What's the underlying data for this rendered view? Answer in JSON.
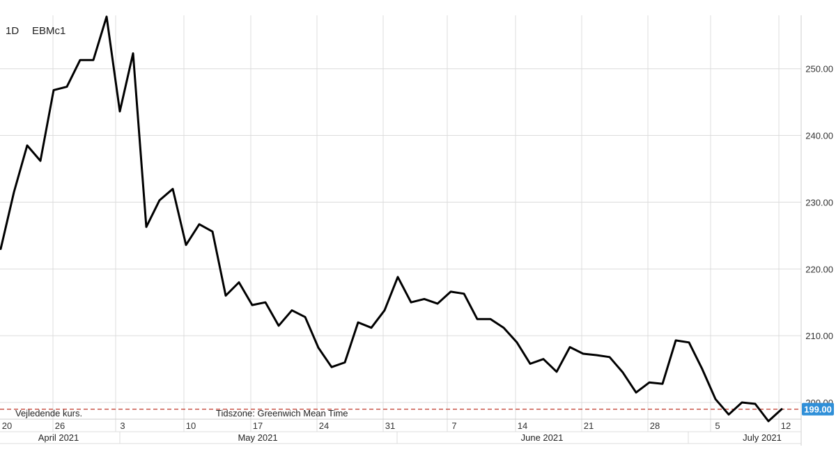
{
  "header": {
    "interval": "1D",
    "symbol": "EBMc1"
  },
  "notes": {
    "indicative": "Vejledende kurs.",
    "timezone": "Tidszone: Greenwich Mean Time"
  },
  "colors": {
    "line": "#000000",
    "ref_line": "#c0392b",
    "badge": "#2f8fd8"
  },
  "chart_data": {
    "type": "line",
    "y_ticks": [
      "250.00",
      "240.00",
      "230.00",
      "220.00",
      "210.00",
      "200.00"
    ],
    "ylim": [
      197.5,
      258
    ],
    "x_tick_labels": [
      "20",
      "26",
      "3",
      "10",
      "17",
      "24",
      "31",
      "7",
      "14",
      "21",
      "28",
      "5",
      "12"
    ],
    "month_labels": [
      "April 2021",
      "May 2021",
      "June 2021",
      "July 2021"
    ],
    "current_value": "199.00",
    "reference_line": 199.0,
    "grid": true,
    "series": [
      {
        "values": [
          223,
          231.5,
          238.5,
          236.2,
          246.8,
          247.3,
          251.3,
          251.3,
          257.8,
          243.6,
          252.3,
          226.3,
          230.3,
          232,
          223.6,
          226.7,
          225.6,
          216,
          218,
          214.6,
          215,
          211.5,
          213.8,
          212.8,
          208.2,
          205.3,
          206,
          212,
          211.2,
          213.8,
          218.8,
          215,
          215.5,
          214.8,
          216.6,
          216.3,
          212.5,
          212.5,
          211.2,
          209,
          205.8,
          206.5,
          204.6,
          208.3,
          207.3,
          207.1,
          206.8,
          204.5,
          201.5,
          203,
          202.8,
          209.3,
          209,
          205,
          200.5,
          198.2,
          200,
          199.8,
          197.2,
          199
        ]
      }
    ]
  }
}
